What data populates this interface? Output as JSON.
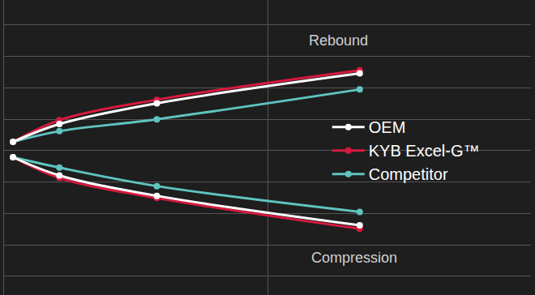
{
  "chart_data": {
    "type": "line",
    "x": [
      0.034,
      0.21,
      0.58,
      1.35
    ],
    "series": [
      {
        "name": "OEM",
        "color": "#ffffff",
        "rebound": [
          0.28,
          0.85,
          1.51,
          2.46
        ],
        "compression": [
          -0.21,
          -0.79,
          -1.44,
          -2.38
        ]
      },
      {
        "name": "KYB Excel-G™",
        "color": "#d7193f",
        "rebound": [
          0.28,
          0.97,
          1.62,
          2.56
        ],
        "compression": [
          -0.21,
          -0.87,
          -1.51,
          -2.49
        ]
      },
      {
        "name": "Competitor",
        "color": "#5fc4c0",
        "rebound": [
          0.28,
          0.62,
          1.0,
          1.95
        ],
        "compression": [
          -0.21,
          -0.54,
          -1.13,
          -1.95
        ]
      }
    ],
    "annotations": [
      "Rebound",
      "Compression"
    ],
    "xlim": [
      0,
      2
    ],
    "xticks": [
      0,
      1,
      2
    ],
    "ylim": [
      -4.6,
      4.8
    ],
    "yticks": [
      -4,
      -3,
      -2,
      -1,
      0,
      1,
      2,
      3,
      4
    ],
    "grid": true,
    "legend": "right",
    "tick_labels": false,
    "marker": "circle",
    "line_style": "solid"
  }
}
